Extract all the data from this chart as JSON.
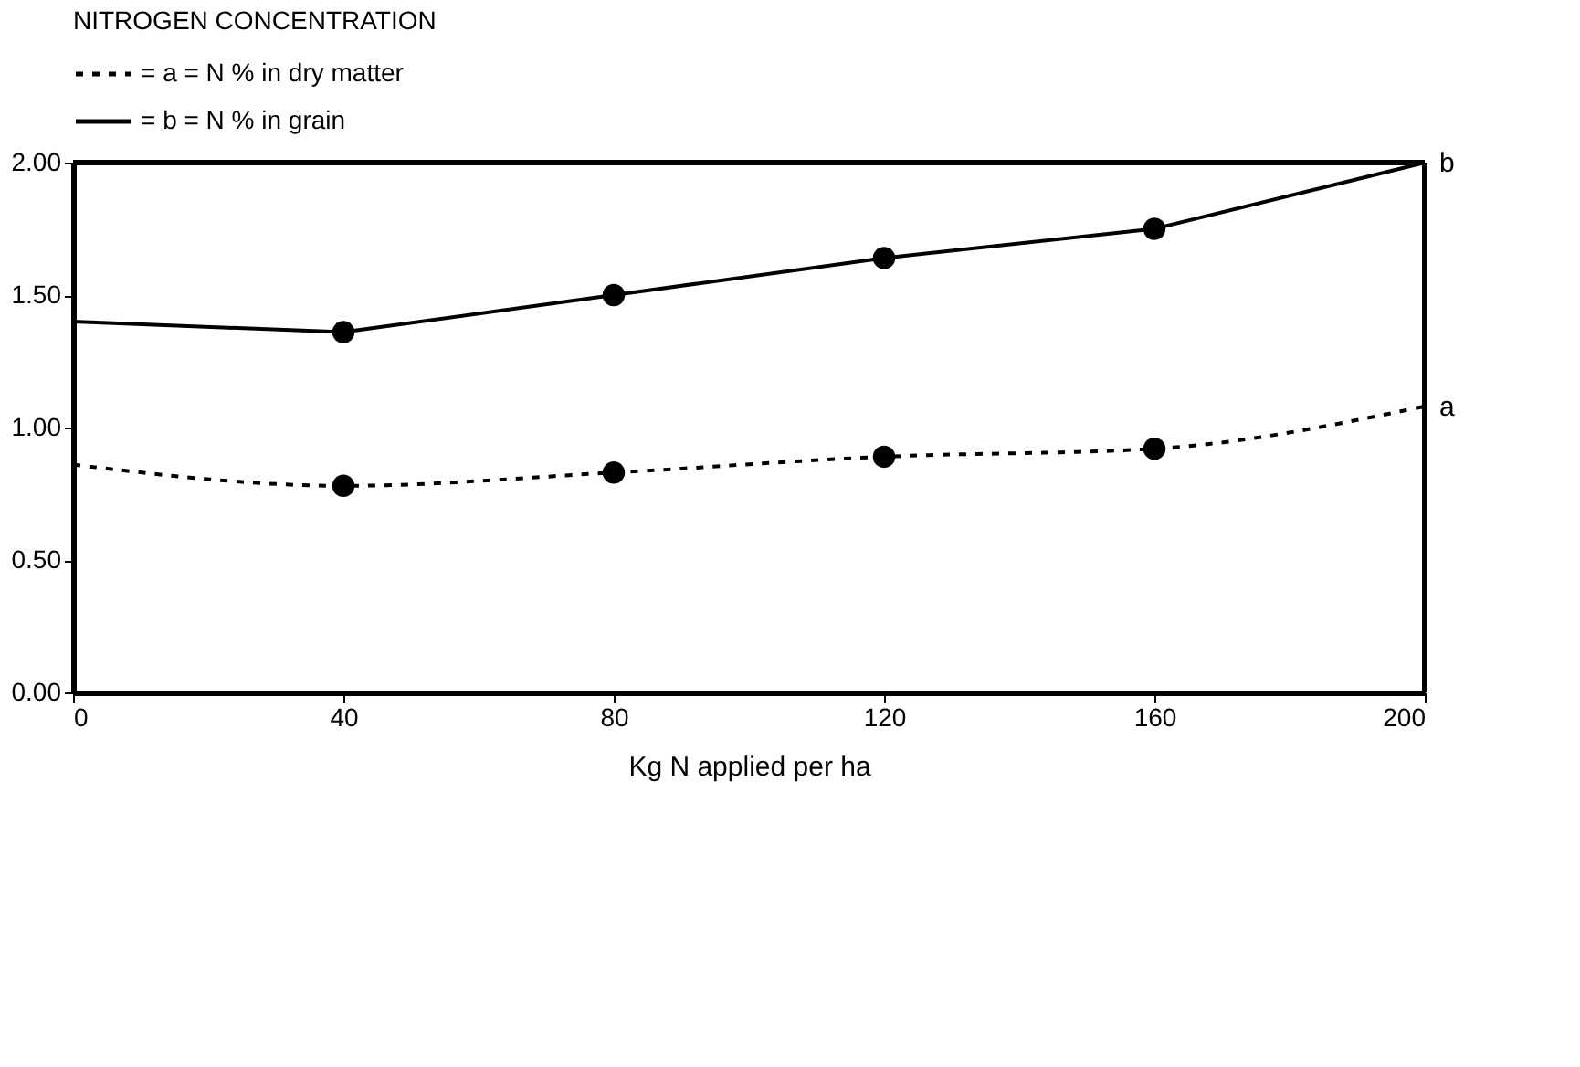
{
  "chart_data": {
    "type": "line",
    "legend_title": "NITROGEN CONCENTRATION",
    "legend": "top left",
    "xlabel": "Kg N applied per ha",
    "xlim": [
      0,
      200
    ],
    "xticks": [
      0,
      40,
      80,
      120,
      160,
      200
    ],
    "ylim": [
      0,
      2
    ],
    "yticks": [
      {
        "value": 0,
        "label": "0.00"
      },
      {
        "value": 0.5,
        "label": "0.50"
      },
      {
        "value": 1,
        "label": "1.00"
      },
      {
        "value": 1.5,
        "label": "1.50"
      },
      {
        "value": 2,
        "label": "2.00"
      }
    ],
    "grid": false,
    "series": [
      {
        "name": "= a = N % in dry matter",
        "color": "#000000",
        "line_style": "dotted",
        "marker": "none",
        "x": [
          0,
          40,
          80,
          120,
          160,
          200
        ],
        "values": [
          0.86,
          0.78,
          0.83,
          0.89,
          0.92,
          1.08
        ]
      },
      {
        "name": "= b = N % in grain",
        "color": "#000000",
        "line_style": "solid",
        "marker": "none",
        "x": [
          0,
          40,
          80,
          120,
          160,
          200
        ],
        "values": [
          1.4,
          1.36,
          1.5,
          1.64,
          1.75,
          2.0
        ]
      },
      {
        "type": "scatter",
        "color": "#000000",
        "marker": "circle",
        "x": [
          40,
          80,
          120,
          160
        ],
        "values": [
          0.78,
          0.83,
          0.89,
          0.92
        ]
      },
      {
        "type": "scatter",
        "color": "#000000",
        "marker": "circle",
        "x": [
          40,
          80,
          120,
          160
        ],
        "values": [
          1.36,
          1.5,
          1.64,
          1.75
        ]
      }
    ],
    "annotations": [
      {
        "text": "a",
        "x": 200,
        "y": 1.08
      },
      {
        "text": "b",
        "x": 200,
        "y": 2.0
      }
    ]
  }
}
